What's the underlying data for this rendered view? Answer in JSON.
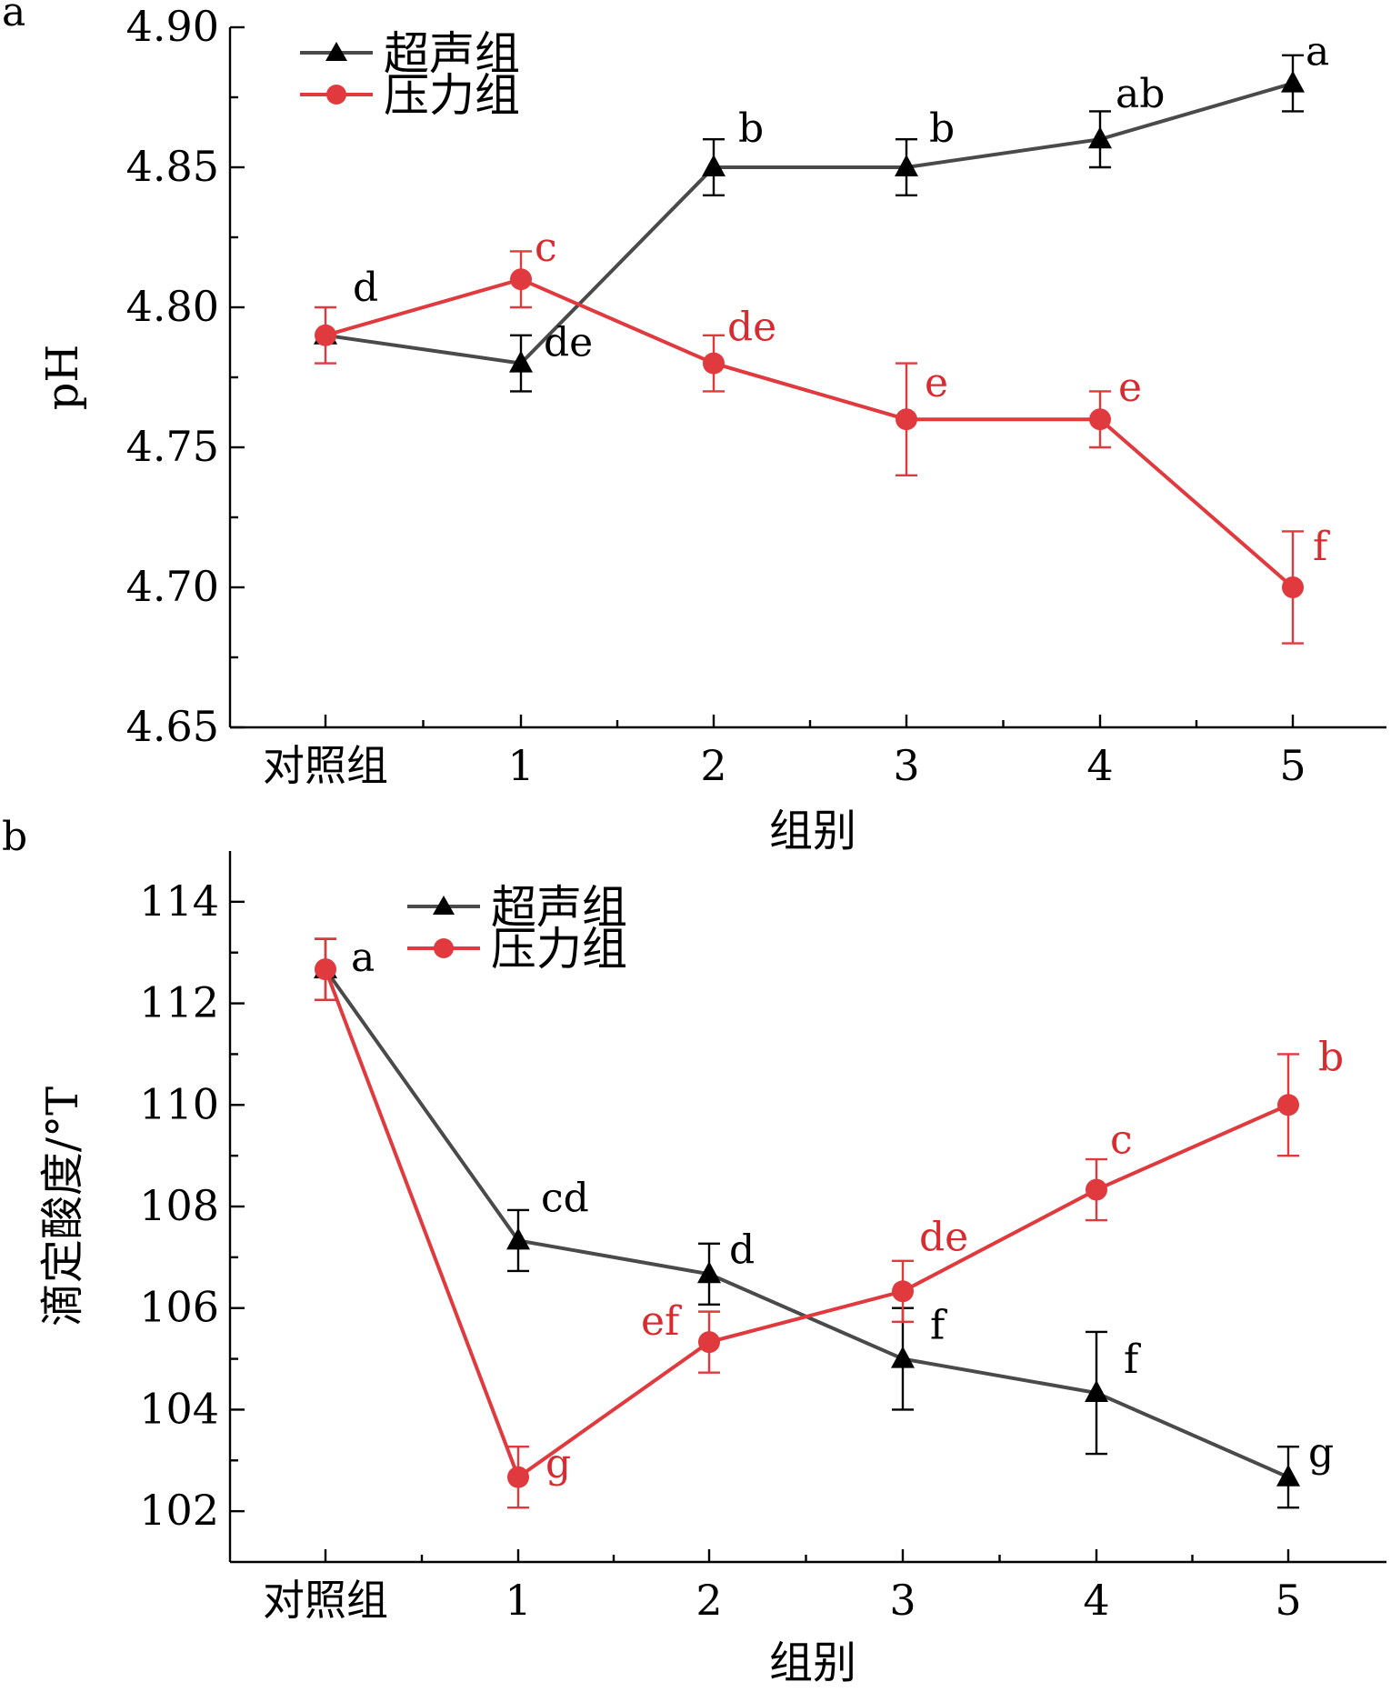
{
  "colors": {
    "ultrasound": "#4a4a4a",
    "ultrasound_marker": "#000000",
    "pressure": "#e0393e",
    "pressure_text": "#d92b2f"
  },
  "chart_data": [
    {
      "panel": "a",
      "type": "line",
      "categories": [
        "对照组",
        "1",
        "2",
        "3",
        "4",
        "5"
      ],
      "xlabel": "组别",
      "ylabel": "pH",
      "ylim": [
        4.65,
        4.9
      ],
      "yticks": [
        "4.65",
        "4.70",
        "4.75",
        "4.80",
        "4.85",
        "4.90"
      ],
      "legend_position": "top-left",
      "series": [
        {
          "name": "超声组",
          "marker": "triangle",
          "color": "ultrasound",
          "values": [
            4.79,
            4.78,
            4.85,
            4.85,
            4.86,
            4.88
          ],
          "errors": [
            0,
            0.01,
            0.01,
            0.01,
            0.01,
            0.01
          ],
          "labels": [
            "d",
            "de",
            "b",
            "b",
            "ab",
            "a"
          ]
        },
        {
          "name": "压力组",
          "marker": "circle",
          "color": "pressure",
          "values": [
            4.79,
            4.81,
            4.78,
            4.76,
            4.76,
            4.7
          ],
          "errors": [
            0.01,
            0.01,
            0.01,
            0.02,
            0.01,
            0.02
          ],
          "labels": [
            "",
            "c",
            "de",
            "e",
            "e",
            "f"
          ]
        }
      ]
    },
    {
      "panel": "b",
      "type": "line",
      "categories": [
        "对照组",
        "1",
        "2",
        "3",
        "4",
        "5"
      ],
      "xlabel": "组别",
      "ylabel": "滴定酸度/°T",
      "ylim": [
        101,
        115
      ],
      "yticks": [
        "102",
        "104",
        "106",
        "108",
        "110",
        "112",
        "114"
      ],
      "legend_position": "top-left",
      "series": [
        {
          "name": "超声组",
          "marker": "triangle",
          "color": "ultrasound",
          "values": [
            112.67,
            107.33,
            106.67,
            105.0,
            104.33,
            102.67
          ],
          "errors": [
            0.6,
            0.6,
            0.6,
            1.0,
            1.2,
            0.6
          ],
          "labels": [
            "a",
            "cd",
            "d",
            "f",
            "f",
            "g"
          ]
        },
        {
          "name": "压力组",
          "marker": "circle",
          "color": "pressure",
          "values": [
            112.67,
            102.67,
            105.33,
            106.33,
            108.33,
            110.0
          ],
          "errors": [
            0.6,
            0.6,
            0.6,
            0.6,
            0.6,
            1.0
          ],
          "labels": [
            "",
            "g",
            "ef",
            "de",
            "c",
            "b"
          ]
        }
      ]
    }
  ]
}
